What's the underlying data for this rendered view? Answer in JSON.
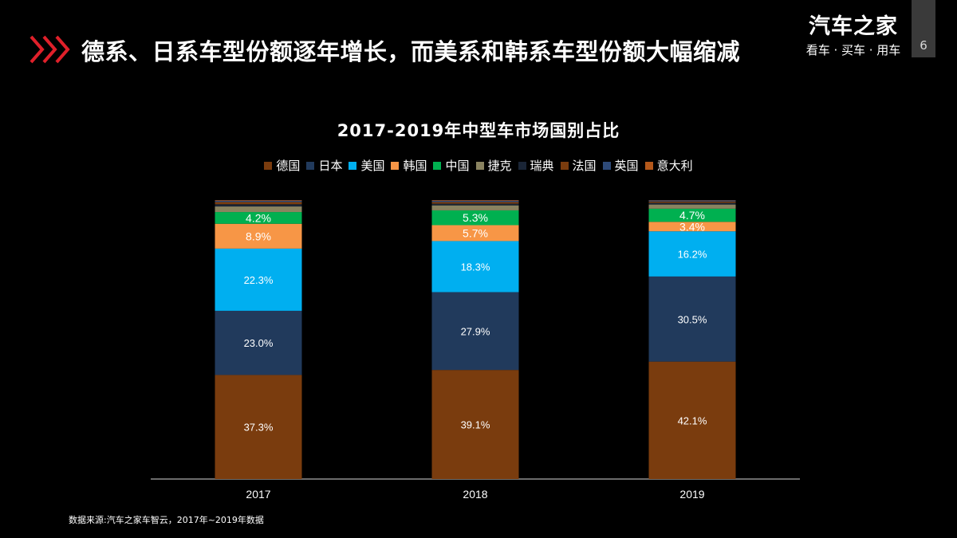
{
  "header": {
    "title": "德系、日系车型份额逐年增长，而美系和韩系车型份额大幅缩减",
    "brand_name": "汽车之家",
    "brand_slogan": "看车 · 买车 · 用车",
    "page_number": "6",
    "accent_color": "#e0202a"
  },
  "chart_data": {
    "type": "bar",
    "stacked": true,
    "title": "2017-2019年中型车市场国别占比",
    "categories": [
      "2017",
      "2018",
      "2019"
    ],
    "ylim": [
      0,
      100
    ],
    "grid": false,
    "legend_position": "top",
    "series": [
      {
        "name": "德国",
        "color": "#7a3c0e",
        "values": [
          37.3,
          39.1,
          42.1
        ],
        "labels": [
          "37.3%",
          "39.1%",
          "42.1%"
        ]
      },
      {
        "name": "日本",
        "color": "#213a5c",
        "values": [
          23.0,
          27.9,
          30.5
        ],
        "labels": [
          "23.0%",
          "27.9%",
          "30.5%"
        ]
      },
      {
        "name": "美国",
        "color": "#00aff0",
        "values": [
          22.3,
          18.3,
          16.2
        ],
        "labels": [
          "22.3%",
          "18.3%",
          "16.2%"
        ]
      },
      {
        "name": "韩国",
        "color": "#f79646",
        "values": [
          8.9,
          5.7,
          3.4
        ],
        "labels": [
          "8.9%",
          "5.7%",
          "3.4%"
        ]
      },
      {
        "name": "中国",
        "color": "#00b050",
        "values": [
          4.2,
          5.3,
          4.7
        ],
        "labels": [
          "4.2%",
          "5.3%",
          "4.7%"
        ]
      },
      {
        "name": "捷克",
        "color": "#8a8360",
        "values": [
          2.0,
          1.8,
          1.5
        ],
        "labels": [
          "",
          "",
          ""
        ]
      },
      {
        "name": "瑞典",
        "color": "#1a2536",
        "values": [
          0.8,
          0.6,
          0.6
        ],
        "labels": [
          "",
          "",
          ""
        ]
      },
      {
        "name": "法国",
        "color": "#7a3c0e",
        "values": [
          0.8,
          0.6,
          0.5
        ],
        "labels": [
          "",
          "",
          ""
        ]
      },
      {
        "name": "英国",
        "color": "#2e4a78",
        "values": [
          0.5,
          0.5,
          0.4
        ],
        "labels": [
          "",
          "",
          ""
        ]
      },
      {
        "name": "意大利",
        "color": "#b4581a",
        "values": [
          0.2,
          0.2,
          0.1
        ],
        "labels": [
          "",
          "",
          ""
        ]
      }
    ]
  },
  "footer": {
    "source": "数据来源:汽车之家车智云，2017年~2019年数据"
  }
}
